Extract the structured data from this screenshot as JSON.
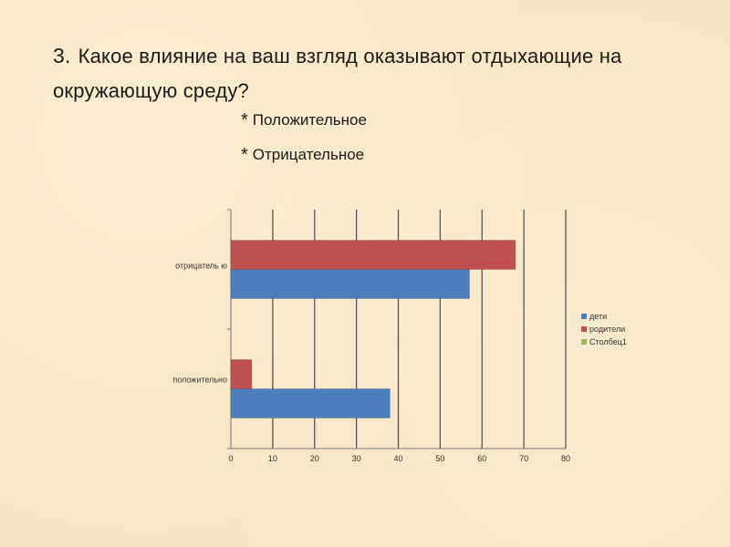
{
  "slide": {
    "question_number": "3.",
    "question_text": "Какое влияние на ваш взгляд оказывают отдыхающие на  окружающую среду?",
    "options": [
      {
        "marker": "*",
        "label": "Положительное"
      },
      {
        "marker": "*",
        "label": "Отрицательное"
      }
    ]
  },
  "chart_data": {
    "type": "bar",
    "orientation": "horizontal",
    "categories": [
      "положительно",
      "отрицатель ю"
    ],
    "series": [
      {
        "name": "дети",
        "values": [
          38,
          57
        ],
        "color": "#4f7ebd"
      },
      {
        "name": "родители",
        "values": [
          5,
          68
        ],
        "color": "#c0504d"
      },
      {
        "name": "Столбец1",
        "values": [
          0,
          0
        ],
        "color": "#9bbb59"
      }
    ],
    "xlim": [
      0,
      80
    ],
    "ticks": [
      0,
      10,
      20,
      30,
      40,
      50,
      60,
      70,
      80
    ],
    "grid": true,
    "legend": "right"
  }
}
